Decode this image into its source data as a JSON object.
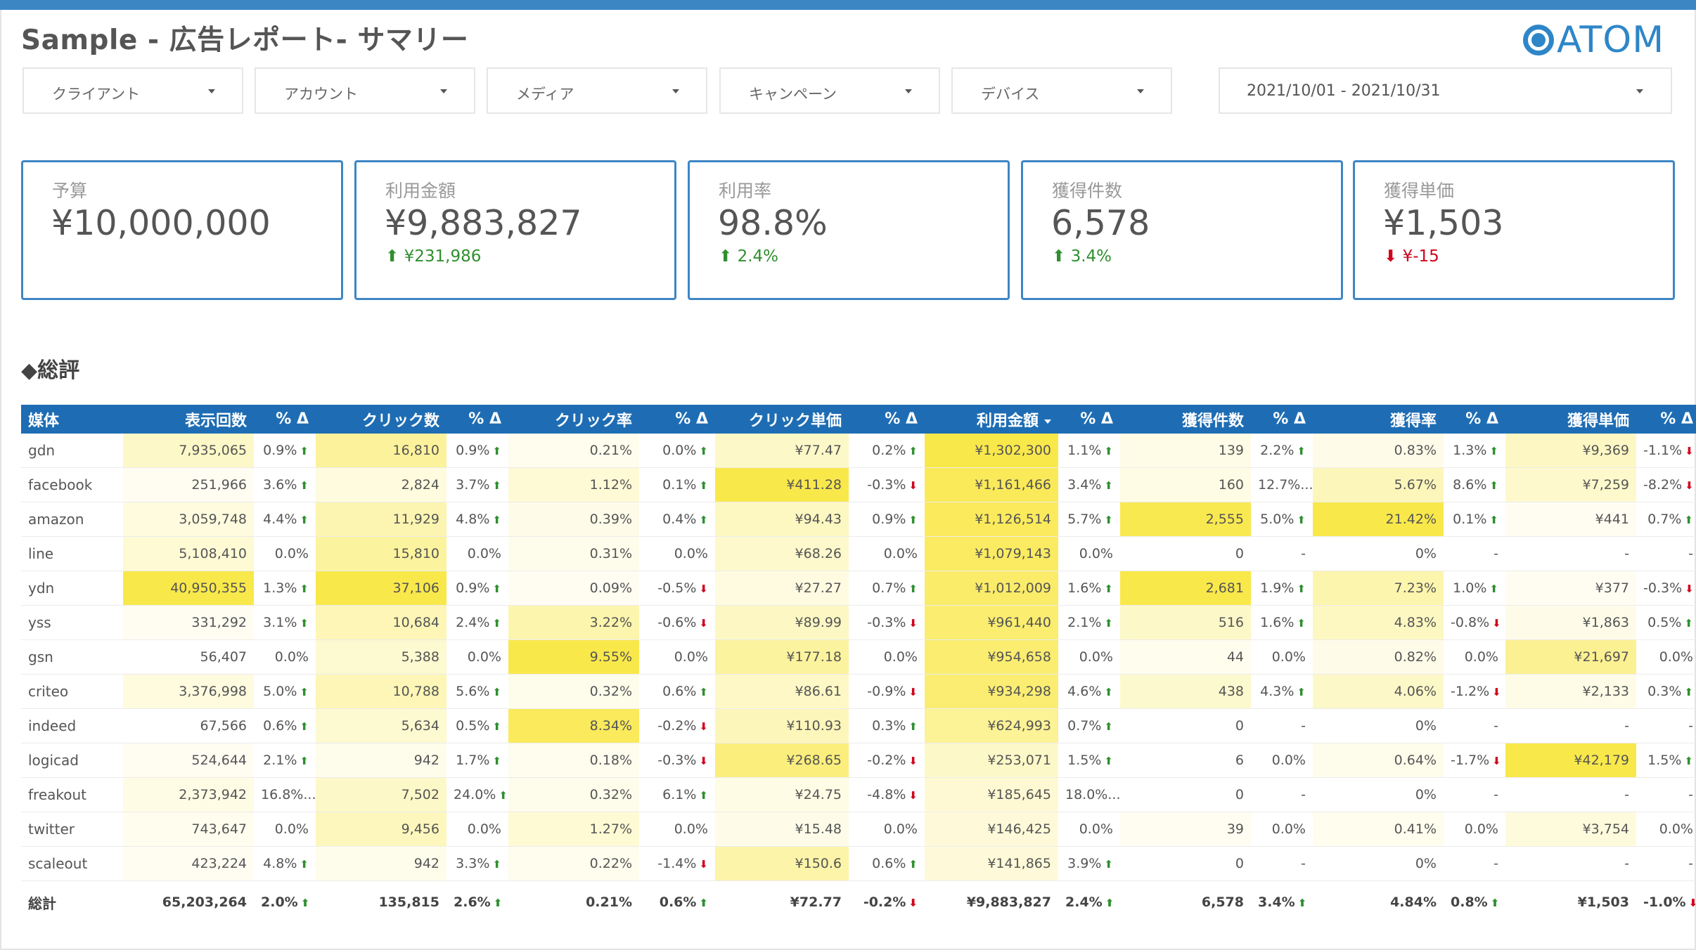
{
  "colors": {
    "accent": "#3d86c4",
    "table_header": "#1e6db4",
    "heat": "#f9e84a",
    "up": "#2f8f2f",
    "down": "#d0021b"
  },
  "title": "Sample - 広告レポート- サマリー",
  "logo": "ATOM",
  "filters": [
    "クライアント",
    "アカウント",
    "メディア",
    "キャンペーン",
    "デバイス"
  ],
  "date_range": "2021/10/01 - 2021/10/31",
  "kpis": [
    {
      "label": "予算",
      "value": "¥10,000,000",
      "delta": null,
      "dir": null
    },
    {
      "label": "利用金額",
      "value": "¥9,883,827",
      "delta": "¥231,986",
      "dir": "up"
    },
    {
      "label": "利用率",
      "value": "98.8%",
      "delta": "2.4%",
      "dir": "up"
    },
    {
      "label": "獲得件数",
      "value": "6,578",
      "delta": "3.4%",
      "dir": "up"
    },
    {
      "label": "獲得単価",
      "value": "¥1,503",
      "delta": "¥-15",
      "dir": "down"
    }
  ],
  "section_title": "◆総評",
  "table": {
    "columns": [
      "媒体",
      "表示回数",
      "% Δ",
      "クリック数",
      "% Δ",
      "クリック率",
      "% Δ",
      "クリック単価",
      "% Δ",
      "利用金額",
      "% Δ",
      "獲得件数",
      "% Δ",
      "獲得率",
      "% Δ",
      "獲得単価",
      "% Δ"
    ],
    "sorted_column": "利用金額",
    "rows": [
      [
        "gdn",
        "7,935,065",
        "0.9%|up",
        "16,810",
        "0.9%|up",
        "0.21%",
        "0.0%|up",
        "¥77.47",
        "0.2%|up",
        "¥1,302,300",
        "1.1%|up",
        "139",
        "2.2%|up",
        "0.83%",
        "1.3%|up",
        "¥9,369",
        "-1.1%|down"
      ],
      [
        "facebook",
        "251,966",
        "3.6%|up",
        "2,824",
        "3.7%|up",
        "1.12%",
        "0.1%|up",
        "¥411.28",
        "-0.3%|down",
        "¥1,161,466",
        "3.4%|up",
        "160",
        "12.7%...",
        "5.67%",
        "8.6%|up",
        "¥7,259",
        "-8.2%|down"
      ],
      [
        "amazon",
        "3,059,748",
        "4.4%|up",
        "11,929",
        "4.8%|up",
        "0.39%",
        "0.4%|up",
        "¥94.43",
        "0.9%|up",
        "¥1,126,514",
        "5.7%|up",
        "2,555",
        "5.0%|up",
        "21.42%",
        "0.1%|up",
        "¥441",
        "0.7%|up"
      ],
      [
        "line",
        "5,108,410",
        "0.0%",
        "15,810",
        "0.0%",
        "0.31%",
        "0.0%",
        "¥68.26",
        "0.0%",
        "¥1,079,143",
        "0.0%",
        "0",
        "-",
        "0%",
        "-",
        "-",
        "-"
      ],
      [
        "ydn",
        "40,950,355",
        "1.3%|up",
        "37,106",
        "0.9%|up",
        "0.09%",
        "-0.5%|down",
        "¥27.27",
        "0.7%|up",
        "¥1,012,009",
        "1.6%|up",
        "2,681",
        "1.9%|up",
        "7.23%",
        "1.0%|up",
        "¥377",
        "-0.3%|down"
      ],
      [
        "yss",
        "331,292",
        "3.1%|up",
        "10,684",
        "2.4%|up",
        "3.22%",
        "-0.6%|down",
        "¥89.99",
        "-0.3%|down",
        "¥961,440",
        "2.1%|up",
        "516",
        "1.6%|up",
        "4.83%",
        "-0.8%|down",
        "¥1,863",
        "0.5%|up"
      ],
      [
        "gsn",
        "56,407",
        "0.0%",
        "5,388",
        "0.0%",
        "9.55%",
        "0.0%",
        "¥177.18",
        "0.0%",
        "¥954,658",
        "0.0%",
        "44",
        "0.0%",
        "0.82%",
        "0.0%",
        "¥21,697",
        "0.0%"
      ],
      [
        "criteo",
        "3,376,998",
        "5.0%|up",
        "10,788",
        "5.6%|up",
        "0.32%",
        "0.6%|up",
        "¥86.61",
        "-0.9%|down",
        "¥934,298",
        "4.6%|up",
        "438",
        "4.3%|up",
        "4.06%",
        "-1.2%|down",
        "¥2,133",
        "0.3%|up"
      ],
      [
        "indeed",
        "67,566",
        "0.6%|up",
        "5,634",
        "0.5%|up",
        "8.34%",
        "-0.2%|down",
        "¥110.93",
        "0.3%|up",
        "¥624,993",
        "0.7%|up",
        "0",
        "-",
        "0%",
        "-",
        "-",
        "-"
      ],
      [
        "logicad",
        "524,644",
        "2.1%|up",
        "942",
        "1.7%|up",
        "0.18%",
        "-0.3%|down",
        "¥268.65",
        "-0.2%|down",
        "¥253,071",
        "1.5%|up",
        "6",
        "0.0%",
        "0.64%",
        "-1.7%|down",
        "¥42,179",
        "1.5%|up"
      ],
      [
        "freakout",
        "2,373,942",
        "16.8%...",
        "7,502",
        "24.0%|up",
        "0.32%",
        "6.1%|up",
        "¥24.75",
        "-4.8%|down",
        "¥185,645",
        "18.0%...",
        "0",
        "-",
        "0%",
        "-",
        "-",
        "-"
      ],
      [
        "twitter",
        "743,647",
        "0.0%",
        "9,456",
        "0.0%",
        "1.27%",
        "0.0%",
        "¥15.48",
        "0.0%",
        "¥146,425",
        "0.0%",
        "39",
        "0.0%",
        "0.41%",
        "0.0%",
        "¥3,754",
        "0.0%"
      ],
      [
        "scaleout",
        "423,224",
        "4.8%|up",
        "942",
        "3.3%|up",
        "0.22%",
        "-1.4%|down",
        "¥150.6",
        "0.6%|up",
        "¥141,865",
        "3.9%|up",
        "0",
        "-",
        "0%",
        "-",
        "-",
        "-"
      ]
    ],
    "total": [
      "総計",
      "65,203,264",
      "2.0%|up",
      "135,815",
      "2.6%|up",
      "0.21%",
      "0.6%|up",
      "¥72.77",
      "-0.2%|down",
      "¥9,883,827",
      "2.4%|up",
      "6,578",
      "3.4%|up",
      "4.84%",
      "0.8%|up",
      "¥1,503",
      "-1.0%|down"
    ],
    "heat_levels": [
      [
        0,
        0.2,
        0,
        0.45,
        0,
        0.02,
        0,
        0.2,
        0,
        1.0,
        0,
        0.05,
        0,
        0.04,
        0,
        0.22,
        0
      ],
      [
        0,
        0.01,
        0,
        0.08,
        0,
        0.12,
        0,
        1.0,
        0,
        0.89,
        0,
        0.06,
        0,
        0.26,
        0,
        0.17,
        0
      ],
      [
        0,
        0.08,
        0,
        0.32,
        0,
        0.04,
        0,
        0.23,
        0,
        0.87,
        0,
        0.95,
        0,
        1.0,
        0,
        0.01,
        0
      ],
      [
        0,
        0.13,
        0,
        0.43,
        0,
        0.03,
        0,
        0.17,
        0,
        0.83,
        0,
        0,
        0,
        0,
        0,
        0,
        0
      ],
      [
        0,
        1.0,
        0,
        1.0,
        0,
        0.01,
        0,
        0.07,
        0,
        0.78,
        0,
        1.0,
        0,
        0.34,
        0,
        0.01,
        0
      ],
      [
        0,
        0.01,
        0,
        0.29,
        0,
        0.34,
        0,
        0.22,
        0,
        0.74,
        0,
        0.19,
        0,
        0.23,
        0,
        0.04,
        0
      ],
      [
        0,
        0.0,
        0,
        0.15,
        0,
        1.0,
        0,
        0.43,
        0,
        0.73,
        0,
        0.02,
        0,
        0.04,
        0,
        0.51,
        0
      ],
      [
        0,
        0.08,
        0,
        0.29,
        0,
        0.03,
        0,
        0.21,
        0,
        0.72,
        0,
        0.16,
        0,
        0.19,
        0,
        0.05,
        0
      ],
      [
        0,
        0.0,
        0,
        0.15,
        0,
        0.87,
        0,
        0.27,
        0,
        0.48,
        0,
        0,
        0,
        0,
        0,
        0,
        0
      ],
      [
        0,
        0.01,
        0,
        0.03,
        0,
        0.02,
        0,
        0.65,
        0,
        0.19,
        0,
        0.0,
        0,
        0.03,
        0,
        1.0,
        0
      ],
      [
        0,
        0.06,
        0,
        0.2,
        0,
        0.03,
        0,
        0.06,
        0,
        0.14,
        0,
        0,
        0,
        0,
        0,
        0,
        0
      ],
      [
        0,
        0.02,
        0,
        0.25,
        0,
        0.13,
        0,
        0.04,
        0,
        0.11,
        0,
        0.01,
        0,
        0.02,
        0,
        0.09,
        0
      ],
      [
        0,
        0.01,
        0,
        0.03,
        0,
        0.02,
        0,
        0.37,
        0,
        0.11,
        0,
        0,
        0,
        0,
        0,
        0,
        0
      ]
    ]
  }
}
